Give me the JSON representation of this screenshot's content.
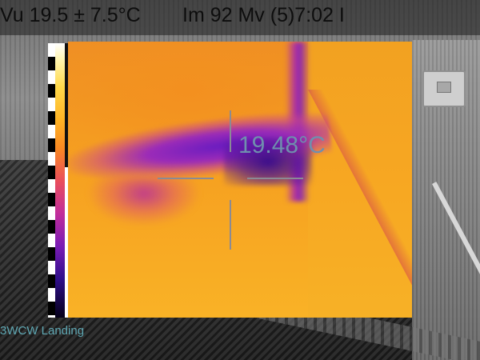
{
  "status_bar": {
    "range_text": "Vu 19.5 ± 7.5°C",
    "info_text": "Im 92 Mv (5)7:02 I"
  },
  "spot_meter": {
    "temperature_text": "19.48°C"
  },
  "location_label": "3WCW Landing",
  "colors": {
    "spot_text": "#6f8fae",
    "label_text": "#5fa8b4",
    "palette": [
      "#ffffff",
      "#ffd84a",
      "#f98a22",
      "#ea4f5a",
      "#c22d9a",
      "#7a1cb4",
      "#2f0e8a",
      "#050018"
    ]
  },
  "icons": {
    "crosshair": "crosshair-icon"
  }
}
